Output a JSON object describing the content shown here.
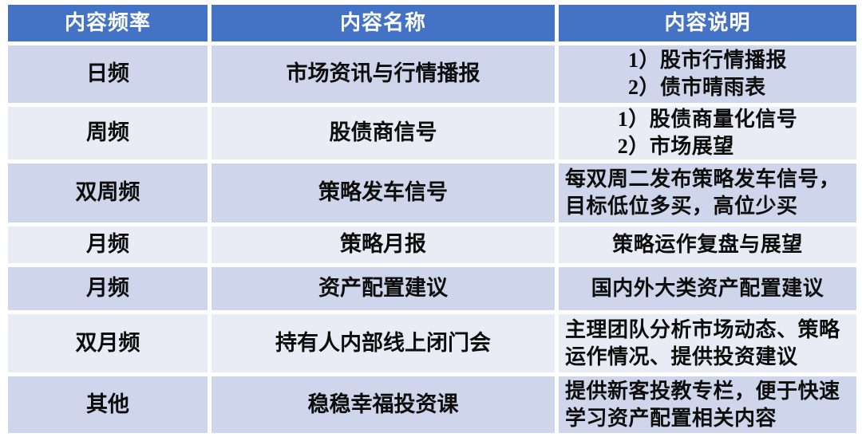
{
  "table": {
    "columns": [
      {
        "label": "内容频率"
      },
      {
        "label": "内容名称"
      },
      {
        "label": "内容说明"
      }
    ],
    "rows": [
      {
        "frequency": "日频",
        "name": "市场资讯与行情播报",
        "desc_lines": [
          "1）股市行情播报",
          "2）债市晴雨表"
        ]
      },
      {
        "frequency": "周频",
        "name": "股债商信号",
        "desc_lines": [
          "1）股债商量化信号",
          "2）市场展望"
        ]
      },
      {
        "frequency": "双周频",
        "name": "策略发车信号",
        "desc": "每双周二发布策略发车信号，目标低位多买，高位少买"
      },
      {
        "frequency": "月频",
        "name": "策略月报",
        "desc": "策略运作复盘与展望"
      },
      {
        "frequency": "月频",
        "name": "资产配置建议",
        "desc": "国内外大类资产配置建议"
      },
      {
        "frequency": "双月频",
        "name": "持有人内部线上闭门会",
        "desc": "主理团队分析市场动态、策略运作情况、提供投资建议"
      },
      {
        "frequency": "其他",
        "name": "稳稳幸福投资课",
        "desc": "提供新客投教专栏，便于快速学习资产配置相关内容"
      }
    ],
    "colors": {
      "header_bg": "#4472C4",
      "header_text": "#FFFFFF",
      "band_odd": "#CFD5EA",
      "band_even": "#E9EBF5",
      "body_text": "#0D0D0D",
      "grid_lines": "#FFFFFF"
    }
  }
}
